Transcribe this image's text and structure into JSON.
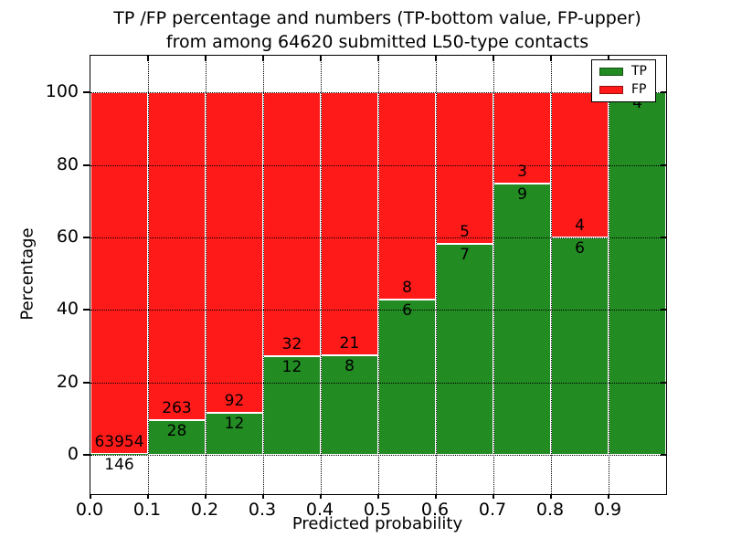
{
  "title": {
    "line1": "TP /FP percentage and numbers (TP-bottom value, FP-upper)",
    "line2": "from among 64620 submitted L50-type contacts"
  },
  "axes": {
    "ylabel": "Percentage",
    "xlabel": "Predicted probability",
    "ytick_labels": [
      "0",
      "20",
      "40",
      "60",
      "80",
      "100"
    ],
    "yticks": [
      0,
      20,
      40,
      60,
      80,
      100
    ],
    "xtick_labels": [
      "0.0",
      "0.1",
      "0.2",
      "0.3",
      "0.4",
      "0.5",
      "0.6",
      "0.7",
      "0.8",
      "0.9"
    ],
    "xticks": [
      0.0,
      0.1,
      0.2,
      0.3,
      0.4,
      0.5,
      0.6,
      0.7,
      0.8,
      0.9
    ],
    "xlim": [
      0.0,
      1.0
    ],
    "ylim": [
      -10.8,
      110.2
    ],
    "grid": "dotted both axes, drawn over bars"
  },
  "legend": {
    "position": "upper right",
    "entries": [
      {
        "label": "TP",
        "color": "#228b22"
      },
      {
        "label": "FP",
        "color": "#ff1a1a"
      }
    ]
  },
  "colors": {
    "tp": "#228b22",
    "fp": "#ff1a1a",
    "bar_edge": "#ffffff",
    "grid": "#000000",
    "background": "#ffffff"
  },
  "chart_data": {
    "type": "bar",
    "stacked": true,
    "normalization": "each bar totals 100%; labels show raw counts (TP bottom, FP upper)",
    "bin_edges": [
      0.0,
      0.1,
      0.2,
      0.3,
      0.4,
      0.5,
      0.6,
      0.7,
      0.8,
      0.9,
      1.0
    ],
    "categories": [
      "0.0-0.1",
      "0.1-0.2",
      "0.2-0.3",
      "0.3-0.4",
      "0.4-0.5",
      "0.5-0.6",
      "0.6-0.7",
      "0.7-0.8",
      "0.8-0.9",
      "0.9-1.0"
    ],
    "series": [
      {
        "name": "TP",
        "color": "#228b22",
        "values": [
          146,
          28,
          12,
          12,
          8,
          6,
          7,
          9,
          6,
          4
        ]
      },
      {
        "name": "FP",
        "color": "#ff1a1a",
        "values": [
          63954,
          263,
          92,
          32,
          21,
          8,
          5,
          3,
          4,
          0
        ]
      }
    ],
    "total_contacts": 64620,
    "title": "TP /FP percentage and numbers (TP-bottom value, FP-upper) from among 64620 submitted L50-type contacts",
    "xlabel": "Predicted probability",
    "ylabel": "Percentage"
  }
}
